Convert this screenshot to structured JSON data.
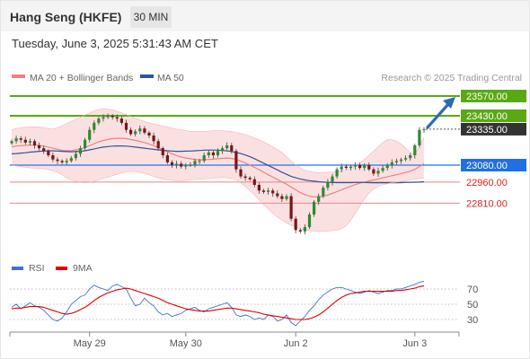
{
  "header": {
    "title": "Hang Seng (HKFE)",
    "interval": "30 MIN"
  },
  "timestamp": "Tuesday, June 3, 2025 5:31:43 AM CET",
  "legend": {
    "items": [
      {
        "label": "MA 20 + Bollinger Bands",
        "color": "#f08080"
      },
      {
        "label": "MA 50",
        "color": "#2f5597"
      }
    ],
    "credit": "Research © 2025 Trading Central"
  },
  "rsi_legend": {
    "items": [
      {
        "label": "RSI",
        "color": "#4472c4"
      },
      {
        "label": "9MA",
        "color": "#e00000"
      }
    ]
  },
  "chart_data": [
    {
      "type": "candlestick",
      "title": "",
      "price_range": [
        22580,
        23660
      ],
      "x_ticks": [
        {
          "label": "May 29",
          "index": 17
        },
        {
          "label": "May 30",
          "index": 38
        },
        {
          "label": "Jun 2",
          "index": 62
        },
        {
          "label": "Jun 3",
          "index": 88
        }
      ],
      "levels": [
        {
          "label": "23570.00",
          "value": 23570,
          "kind": "resistance"
        },
        {
          "label": "23430.00",
          "value": 23430,
          "kind": "resistance"
        },
        {
          "label": "23335.00",
          "value": 23335,
          "kind": "last"
        },
        {
          "label": "23080.00",
          "value": 23080,
          "kind": "pivot"
        },
        {
          "label": "22960.00",
          "value": 22960,
          "kind": "support"
        },
        {
          "label": "22810.00",
          "value": 22810,
          "kind": "support"
        }
      ],
      "projection": {
        "from": 23335,
        "to": 23570
      },
      "closes": [
        23250,
        23270,
        23260,
        23240,
        23250,
        23220,
        23200,
        23180,
        23150,
        23120,
        23110,
        23100,
        23110,
        23130,
        23160,
        23200,
        23260,
        23330,
        23380,
        23410,
        23420,
        23430,
        23420,
        23410,
        23380,
        23330,
        23300,
        23320,
        23340,
        23310,
        23290,
        23250,
        23200,
        23150,
        23100,
        23080,
        23090,
        23070,
        23080,
        23080,
        23110,
        23110,
        23150,
        23170,
        23150,
        23180,
        23200,
        23220,
        23180,
        23050,
        23000,
        22990,
        22980,
        22940,
        22900,
        22890,
        22900,
        22880,
        22860,
        22840,
        22860,
        22700,
        22620,
        22610,
        22640,
        22730,
        22820,
        22860,
        22920,
        22960,
        23000,
        23050,
        23070,
        23060,
        23070,
        23080,
        23060,
        23080,
        23050,
        23020,
        23040,
        23060,
        23080,
        23100,
        23110,
        23120,
        23130,
        23150,
        23220,
        23330,
        23335
      ],
      "ma20": [
        23210,
        23215,
        23218,
        23220,
        23222,
        23222,
        23220,
        23215,
        23208,
        23200,
        23192,
        23185,
        23182,
        23183,
        23188,
        23195,
        23205,
        23218,
        23232,
        23245,
        23255,
        23262,
        23268,
        23270,
        23270,
        23268,
        23262,
        23255,
        23248,
        23240,
        23230,
        23218,
        23205,
        23190,
        23175,
        23160,
        23148,
        23138,
        23130,
        23125,
        23120,
        23118,
        23118,
        23120,
        23122,
        23125,
        23128,
        23130,
        23128,
        23120,
        23108,
        23095,
        23080,
        23065,
        23048,
        23030,
        23012,
        22995,
        22978,
        22960,
        22945,
        22925,
        22905,
        22885,
        22870,
        22860,
        22855,
        22855,
        22860,
        22868,
        22880,
        22892,
        22905,
        22918,
        22930,
        22942,
        22952,
        22960,
        22968,
        22975,
        22982,
        22990,
        22998,
        23005,
        23012,
        23020,
        23028,
        23038,
        23050,
        23070,
        23090
      ],
      "bb_upper": [
        23330,
        23340,
        23345,
        23350,
        23352,
        23352,
        23350,
        23345,
        23340,
        23335,
        23345,
        23360,
        23375,
        23390,
        23405,
        23420,
        23435,
        23450,
        23465,
        23475,
        23480,
        23478,
        23472,
        23462,
        23450,
        23438,
        23425,
        23412,
        23400,
        23390,
        23380,
        23372,
        23365,
        23358,
        23350,
        23342,
        23335,
        23330,
        23325,
        23320,
        23318,
        23318,
        23320,
        23322,
        23325,
        23325,
        23325,
        23322,
        23318,
        23312,
        23305,
        23295,
        23285,
        23272,
        23260,
        23245,
        23228,
        23210,
        23190,
        23170,
        23140,
        23110,
        23080,
        23060,
        23045,
        23035,
        23030,
        23028,
        23028,
        23030,
        23032,
        23035,
        23040,
        23048,
        23060,
        23080,
        23100,
        23120,
        23150,
        23180,
        23210,
        23240,
        23260,
        23260,
        23250,
        23230,
        23200,
        23170,
        23160,
        23210,
        23280
      ],
      "bb_lower": [
        23080,
        23075,
        23070,
        23065,
        23060,
        23058,
        23055,
        23055,
        23050,
        23040,
        23030,
        23010,
        22990,
        22975,
        22965,
        22958,
        22955,
        22958,
        22965,
        22975,
        22985,
        22995,
        23005,
        23015,
        23025,
        23032,
        23035,
        23035,
        23030,
        23022,
        23012,
        23000,
        22990,
        22982,
        22975,
        22972,
        22970,
        22970,
        22972,
        22975,
        22978,
        22980,
        22982,
        22985,
        22988,
        22990,
        22992,
        22990,
        22985,
        22975,
        22955,
        22930,
        22900,
        22870,
        22835,
        22800,
        22770,
        22740,
        22712,
        22690,
        22670,
        22655,
        22640,
        22630,
        22620,
        22615,
        22612,
        22610,
        22610,
        22612,
        22615,
        22620,
        22630,
        22650,
        22690,
        22740,
        22790,
        22840,
        22880,
        22910,
        22930,
        22940,
        22948,
        22955,
        22960,
        22965,
        22970,
        22975,
        22980,
        22985,
        22990
      ],
      "ma50": [
        23160,
        23162,
        23165,
        23168,
        23172,
        23175,
        23178,
        23180,
        23182,
        23182,
        23180,
        23178,
        23176,
        23175,
        23176,
        23178,
        23182,
        23188,
        23195,
        23202,
        23208,
        23212,
        23215,
        23216,
        23216,
        23215,
        23212,
        23208,
        23204,
        23200,
        23196,
        23192,
        23188,
        23185,
        23182,
        23180,
        23178,
        23178,
        23179,
        23180,
        23182,
        23184,
        23186,
        23187,
        23187,
        23186,
        23184,
        23181,
        23177,
        23170,
        23162,
        23152,
        23140,
        23126,
        23110,
        23094,
        23078,
        23062,
        23046,
        23030,
        23015,
        23000,
        22990,
        22982,
        22975,
        22970,
        22966,
        22962,
        22960,
        22958,
        22957,
        22956,
        22956,
        22956,
        22956,
        22957,
        22957,
        22957,
        22956,
        22955,
        22955,
        22955,
        22955,
        22955,
        22955,
        22956,
        22957,
        22958,
        22959,
        22960,
        22962
      ]
    },
    {
      "type": "line",
      "title": "",
      "ylim": [
        20,
        80
      ],
      "y_ticks": [
        70,
        50,
        30
      ],
      "series": [
        {
          "name": "RSI",
          "color": "#4472c4",
          "values": [
            46,
            50,
            44,
            48,
            52,
            48,
            46,
            42,
            36,
            30,
            28,
            32,
            40,
            50,
            55,
            60,
            62,
            70,
            75,
            72,
            70,
            68,
            74,
            76,
            73,
            70,
            58,
            48,
            50,
            58,
            52,
            48,
            40,
            36,
            38,
            34,
            36,
            38,
            42,
            44,
            46,
            42,
            40,
            44,
            46,
            48,
            50,
            52,
            46,
            36,
            34,
            36,
            34,
            30,
            32,
            30,
            36,
            34,
            28,
            30,
            36,
            26,
            22,
            28,
            34,
            42,
            48,
            56,
            62,
            66,
            70,
            72,
            72,
            70,
            68,
            66,
            64,
            66,
            68,
            66,
            64,
            66,
            68,
            68,
            70,
            70,
            72,
            74,
            76,
            79,
            80
          ]
        },
        {
          "name": "9MA",
          "color": "#e00000",
          "values": [
            44,
            45,
            45,
            46,
            47,
            47,
            47,
            46,
            44,
            42,
            40,
            38,
            37,
            38,
            40,
            43,
            46,
            50,
            55,
            59,
            62,
            65,
            67,
            69,
            70,
            71,
            70,
            68,
            66,
            64,
            62,
            60,
            58,
            55,
            52,
            50,
            48,
            46,
            44,
            43,
            42,
            41,
            41,
            41,
            42,
            43,
            44,
            45,
            45,
            44,
            43,
            42,
            41,
            40,
            39,
            37,
            36,
            35,
            34,
            33,
            32,
            31,
            30,
            30,
            30,
            31,
            33,
            36,
            40,
            45,
            50,
            55,
            59,
            62,
            64,
            65,
            66,
            67,
            67,
            67,
            67,
            67,
            67,
            67,
            68,
            68,
            69,
            70,
            71,
            73,
            74
          ]
        }
      ]
    }
  ]
}
